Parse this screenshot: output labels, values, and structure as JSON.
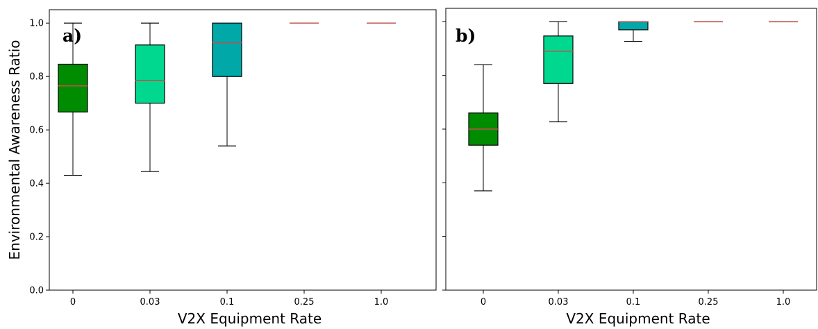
{
  "chart_data": [
    {
      "type": "box",
      "panel_label": "a)",
      "categories": [
        "0",
        "0.03",
        "0.1",
        "0.25",
        "1.0"
      ],
      "xlabel": "V2X Equipment Rate",
      "ylabel": "Environmental Awareness Ratio",
      "ylim": [
        0.0,
        1.05
      ],
      "yticks": [
        "0.0",
        "0.2",
        "0.4",
        "0.6",
        "0.8",
        "1.0"
      ],
      "ytick_values": [
        0.0,
        0.2,
        0.4,
        0.6,
        0.8,
        1.0
      ],
      "grid": false,
      "boxes": [
        {
          "category": "0",
          "whisker_low": 0.43,
          "q1": 0.667,
          "median": 0.765,
          "q3": 0.846,
          "whisker_high": 1.0,
          "color": "#008c00"
        },
        {
          "category": "0.03",
          "whisker_low": 0.444,
          "q1": 0.7,
          "median": 0.785,
          "q3": 0.918,
          "whisker_high": 1.0,
          "color": "#00d88f"
        },
        {
          "category": "0.1",
          "whisker_low": 0.54,
          "q1": 0.8,
          "median": 0.927,
          "q3": 1.0,
          "whisker_high": 1.0,
          "color": "#00a8a8"
        },
        {
          "category": "0.25",
          "whisker_low": 1.0,
          "q1": 1.0,
          "median": 1.0,
          "q3": 1.0,
          "whisker_high": 1.0,
          "color": "#1bd5c0"
        },
        {
          "category": "1.0",
          "whisker_low": 1.0,
          "q1": 1.0,
          "median": 1.0,
          "q3": 1.0,
          "whisker_high": 1.0,
          "color": "#1bd5c0"
        }
      ],
      "median_color": "#c0504d"
    },
    {
      "type": "box",
      "panel_label": "b)",
      "categories": [
        "0",
        "0.03",
        "0.1",
        "0.25",
        "1.0"
      ],
      "xlabel": "V2X Equipment Rate",
      "ylabel": "",
      "ylim": [
        0.0,
        1.05
      ],
      "yticks": [
        "",
        "",
        "",
        "",
        "",
        ""
      ],
      "ytick_values": [
        0.0,
        0.2,
        0.4,
        0.6,
        0.8,
        1.0
      ],
      "grid": false,
      "boxes": [
        {
          "category": "0",
          "whisker_low": 0.37,
          "q1": 0.54,
          "median": 0.6,
          "q3": 0.66,
          "whisker_high": 0.84,
          "color": "#008c00"
        },
        {
          "category": "0.03",
          "whisker_low": 0.627,
          "q1": 0.77,
          "median": 0.89,
          "q3": 0.947,
          "whisker_high": 1.0,
          "color": "#00d88f"
        },
        {
          "category": "0.1",
          "whisker_low": 0.927,
          "q1": 0.97,
          "median": 1.0,
          "q3": 1.0,
          "whisker_high": 1.0,
          "color": "#00a8a8"
        },
        {
          "category": "0.25",
          "whisker_low": 1.0,
          "q1": 1.0,
          "median": 1.0,
          "q3": 1.0,
          "whisker_high": 1.0,
          "color": "#1bd5c0"
        },
        {
          "category": "1.0",
          "whisker_low": 1.0,
          "q1": 1.0,
          "median": 1.0,
          "q3": 1.0,
          "whisker_high": 1.0,
          "color": "#1bd5c0"
        }
      ],
      "median_color": "#c0504d"
    }
  ]
}
